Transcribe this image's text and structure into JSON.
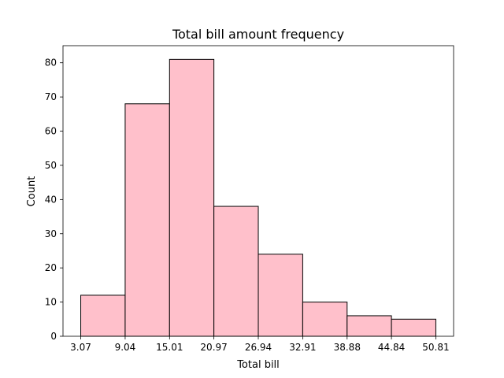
{
  "chart_data": {
    "type": "bar",
    "title": "Total bill amount frequency",
    "xlabel": "Total bill",
    "ylabel": "Count",
    "bin_edges": [
      3.07,
      9.04,
      15.01,
      20.97,
      26.94,
      32.91,
      38.88,
      44.84,
      50.81
    ],
    "x_tick_labels": [
      "3.07",
      "9.04",
      "15.01",
      "20.97",
      "26.94",
      "32.91",
      "38.88",
      "44.84",
      "50.81"
    ],
    "values": [
      12,
      68,
      81,
      38,
      24,
      10,
      6,
      5
    ],
    "ylim": [
      0,
      85
    ],
    "yticks": [
      0,
      10,
      20,
      30,
      40,
      50,
      60,
      70,
      80
    ],
    "bar_color": "#ffc0cb",
    "edge_color": "#000000",
    "grid": false
  }
}
